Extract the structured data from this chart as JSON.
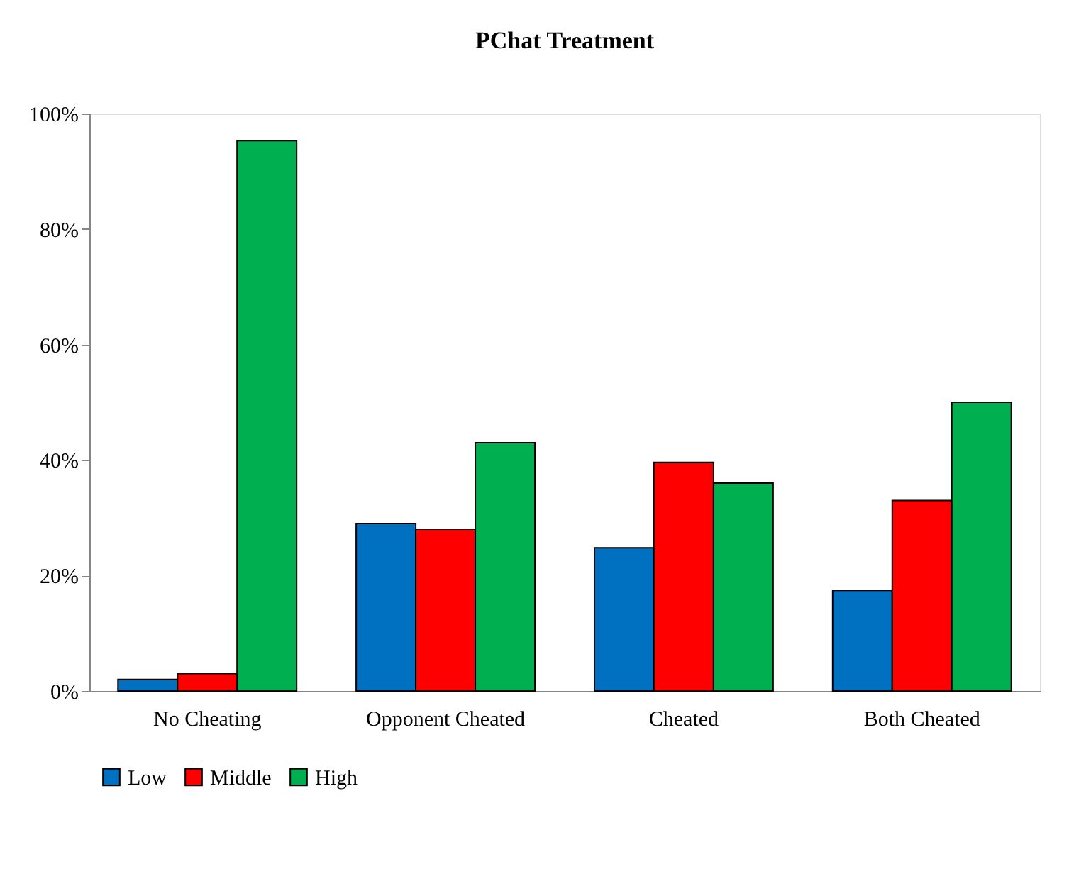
{
  "chart_data": {
    "type": "bar",
    "title": "PChat Treatment",
    "categories": [
      "No Cheating",
      "Opponent Cheated",
      "Cheated",
      "Both Cheated"
    ],
    "series": [
      {
        "name": "Low",
        "color": "#0070c0",
        "values": [
          2,
          29,
          24.8,
          17.4
        ]
      },
      {
        "name": "Middle",
        "color": "#ff0000",
        "values": [
          3,
          28,
          39.6,
          33
        ]
      },
      {
        "name": "High",
        "color": "#00b050",
        "values": [
          95.3,
          43,
          36,
          50
        ]
      }
    ],
    "ylim": [
      0,
      100
    ],
    "yticks": [
      {
        "value": 0,
        "label": "0%"
      },
      {
        "value": 20,
        "label": "20%"
      },
      {
        "value": 40,
        "label": "40%"
      },
      {
        "value": 60,
        "label": "60%"
      },
      {
        "value": 80,
        "label": "80%"
      },
      {
        "value": 100,
        "label": "100%"
      }
    ],
    "grid": false,
    "legend": "bottom"
  }
}
